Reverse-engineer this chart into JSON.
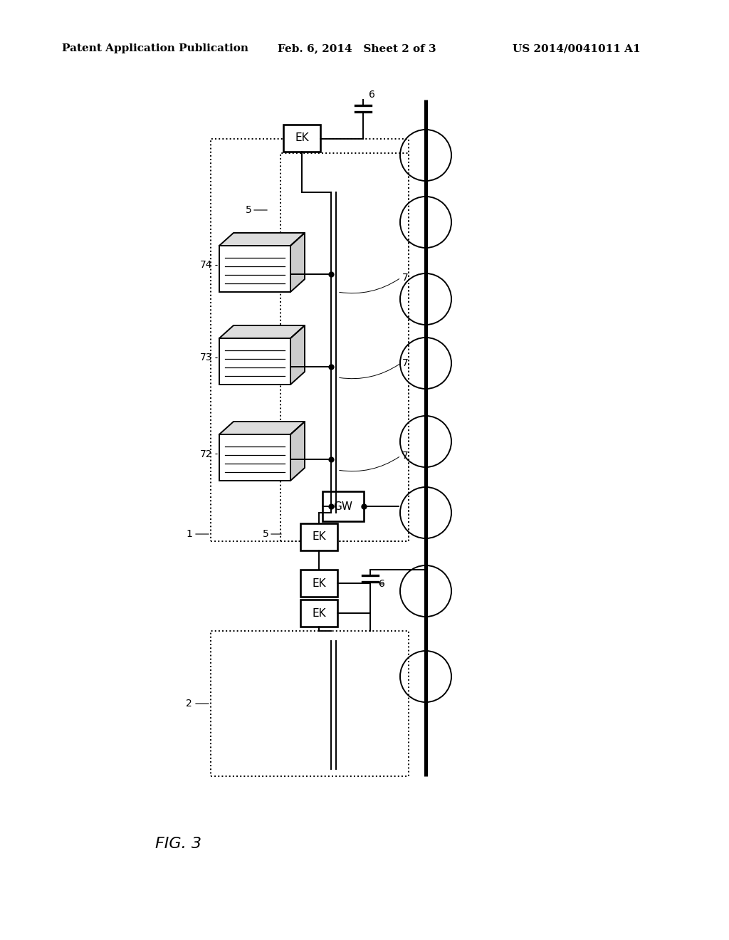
{
  "bg_color": "#ffffff",
  "header_left": "Patent Application Publication",
  "header_mid": "Feb. 6, 2014   Sheet 2 of 3",
  "header_right": "US 2014/0041011 A1",
  "fig_label": "FIG. 3",
  "header_fontsize": 11,
  "fig_fontsize": 16
}
